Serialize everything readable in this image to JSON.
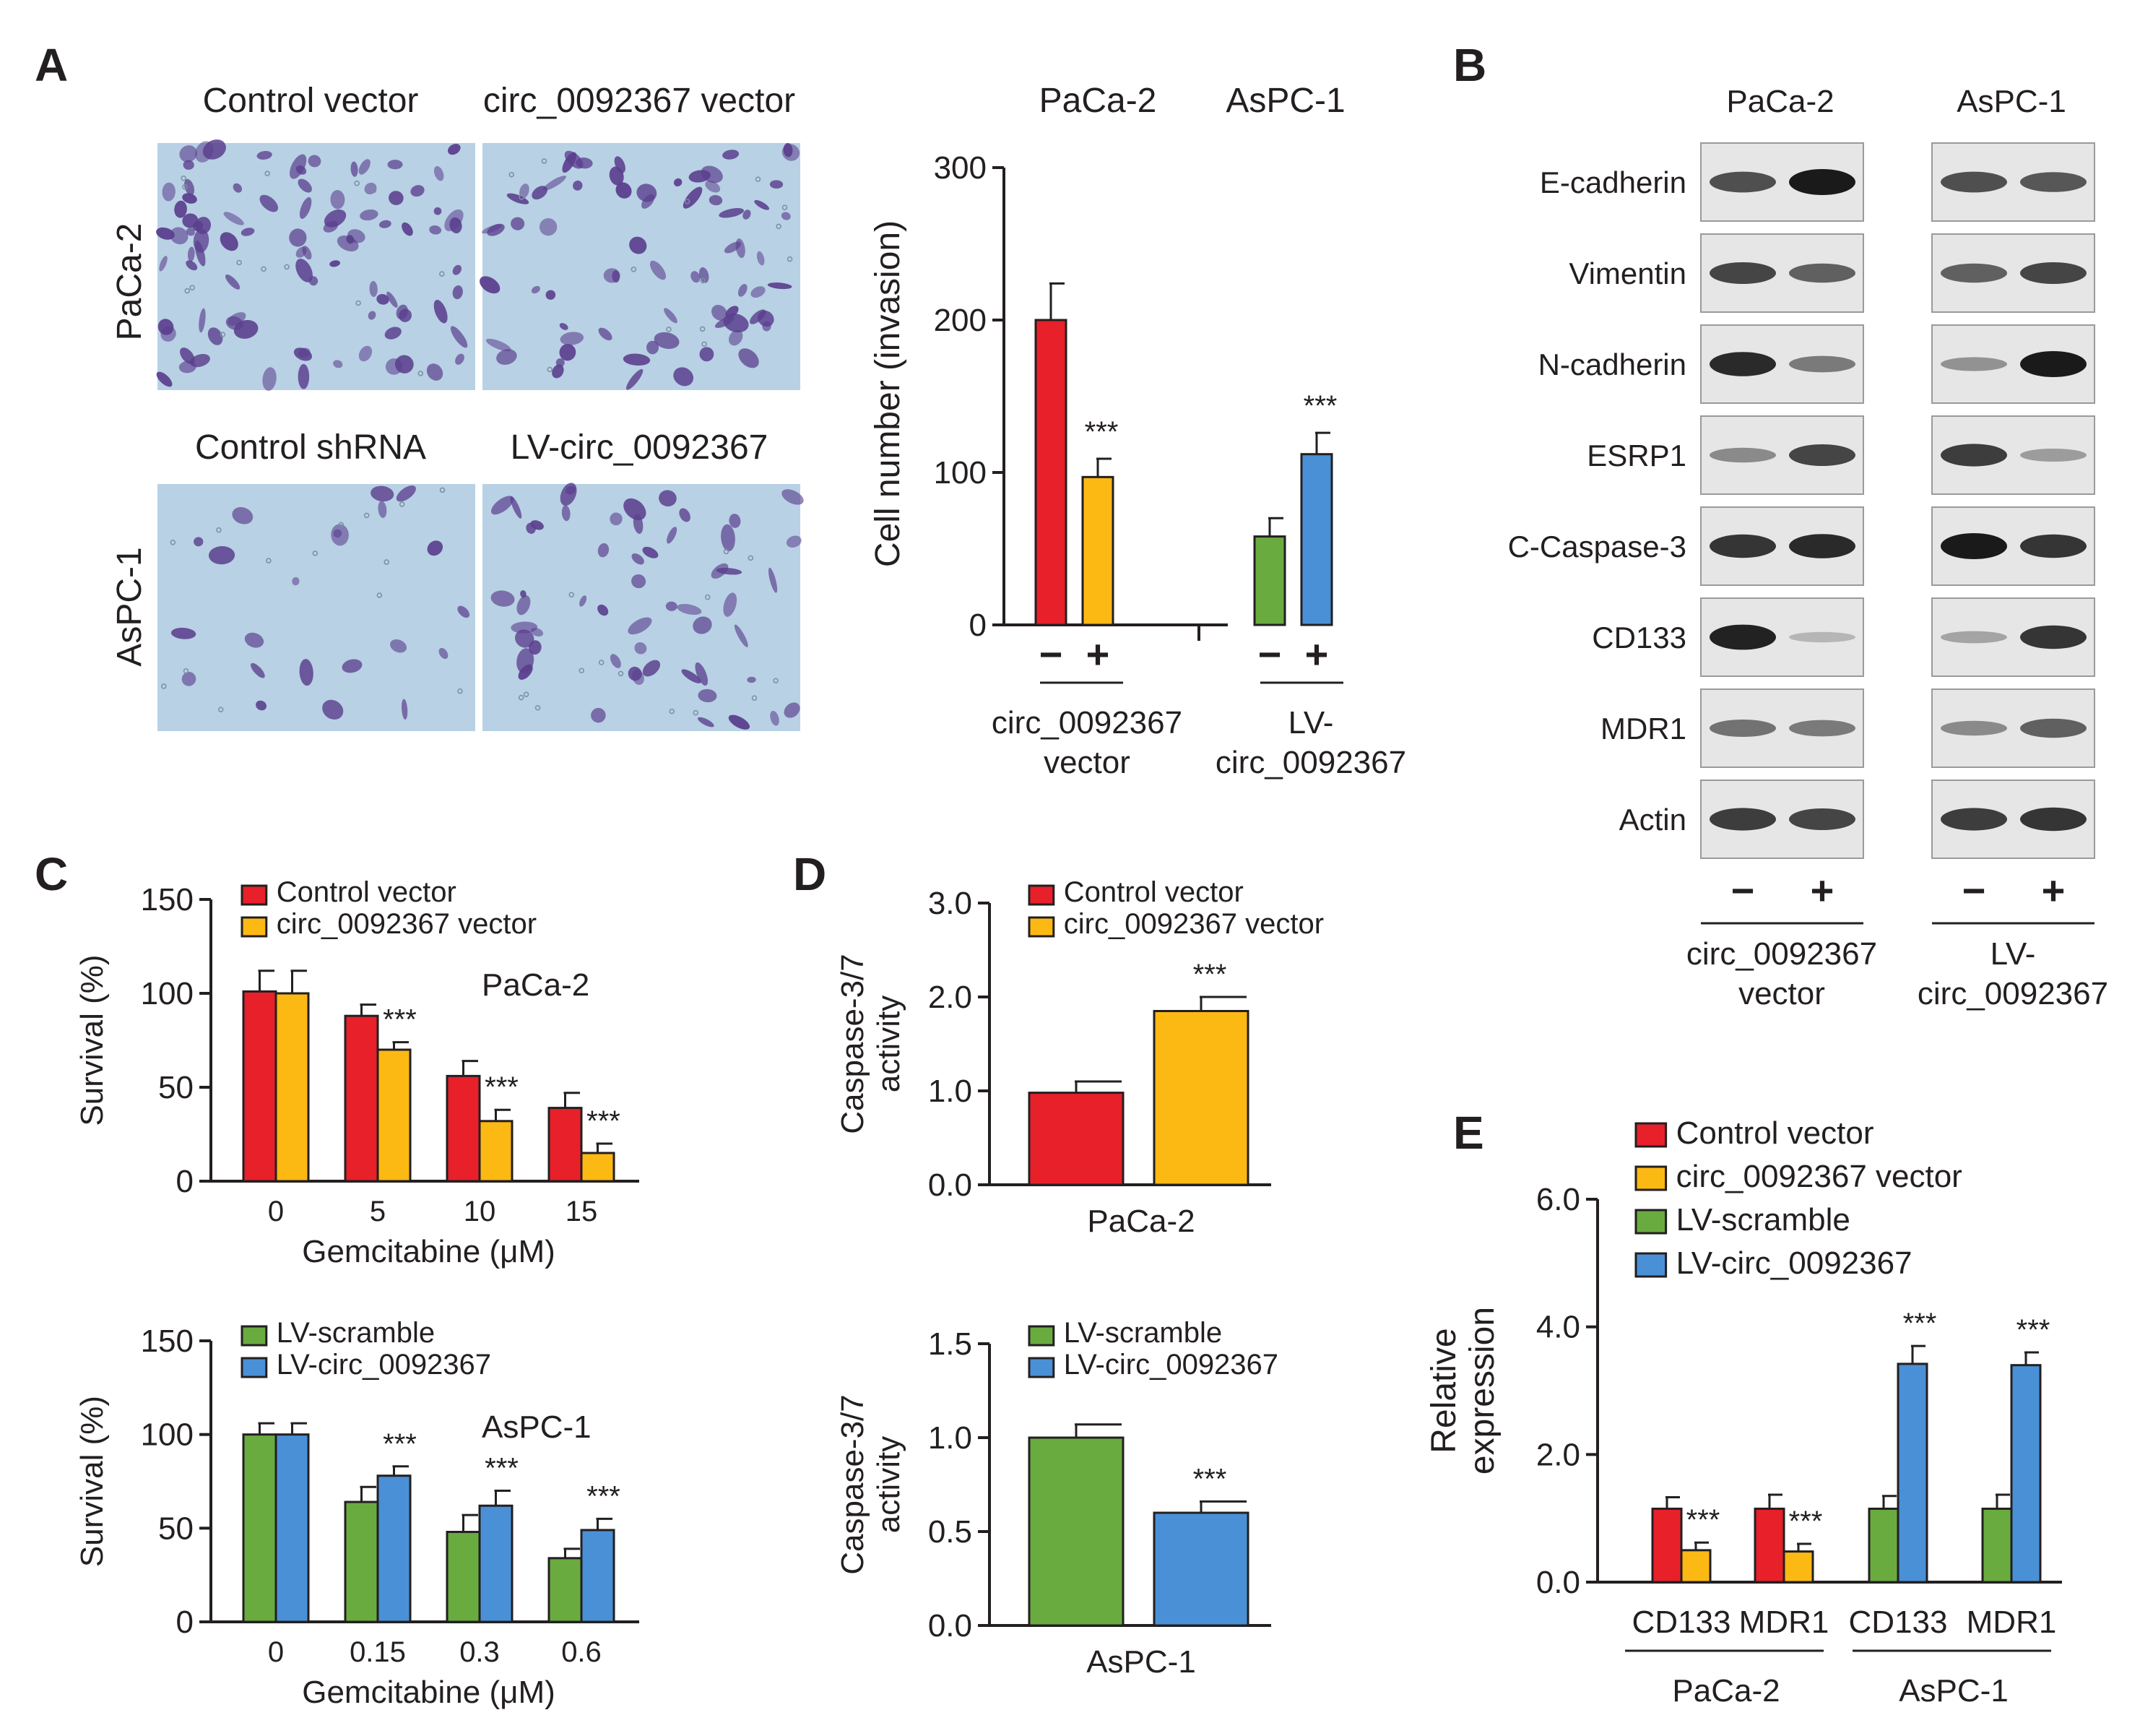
{
  "colors": {
    "red": "#e8202a",
    "yellow": "#fdb913",
    "green": "#6aab3f",
    "blue": "#4a90d6",
    "axis": "#231f20",
    "micro_bg": "#b8d1e4",
    "cell": "#5b3f8e",
    "blot_bg": "#e6e6e6",
    "band": "#1a1a1a"
  },
  "panelA": {
    "letter": "A",
    "micro": {
      "top_left_label": "Control vector",
      "top_right_label": "circ_0092367 vector",
      "row1_label": "PaCa-2",
      "bottom_left_label": "Control shRNA",
      "bottom_right_label": "LV-circ_0092367",
      "row2_label": "AsPC-1"
    },
    "group_titles": [
      "PaCa-2",
      "AsPC-1"
    ],
    "group_labels": [
      [
        "circ_0092367",
        "vector"
      ],
      [
        "LV-",
        "circ_0092367"
      ]
    ]
  },
  "panelB": {
    "letter": "B",
    "cell_lines": [
      "PaCa-2",
      "AsPC-1"
    ],
    "proteins": [
      "E-cadherin",
      "Vimentin",
      "N-cadherin",
      "ESRP1",
      "C-Caspase-3",
      "CD133",
      "MDR1",
      "Actin"
    ],
    "intensities": {
      "E-cadherin": [
        0.7,
        1.0,
        0.7,
        0.65
      ],
      "Vimentin": [
        0.75,
        0.6,
        0.6,
        0.75
      ],
      "N-cadherin": [
        0.9,
        0.45,
        0.3,
        1.0
      ],
      "ESRP1": [
        0.35,
        0.75,
        0.8,
        0.25
      ],
      "C-Caspase-3": [
        0.85,
        0.9,
        1.0,
        0.85
      ],
      "CD133": [
        0.95,
        0.1,
        0.2,
        0.85
      ],
      "MDR1": [
        0.5,
        0.45,
        0.35,
        0.6
      ],
      "Actin": [
        0.8,
        0.75,
        0.8,
        0.85
      ]
    },
    "signs": [
      "−",
      "+",
      "−",
      "+"
    ],
    "group_labels": [
      [
        "circ_0092367",
        "vector"
      ],
      [
        "LV-",
        "circ_0092367"
      ]
    ]
  },
  "panelC_letter": "C",
  "panelD_letter": "D",
  "panelE_letter": "E",
  "chart_data": [
    {
      "id": "A",
      "type": "bar",
      "ylabel": "Cell number (invasion)",
      "ylim": [
        0,
        300
      ],
      "yticks": [
        "0",
        "100",
        "200",
        "300"
      ],
      "categories": [
        "−",
        "+",
        "−",
        "+"
      ],
      "groups": [
        "PaCa-2",
        "AsPC-1"
      ],
      "values": [
        200,
        97,
        58,
        112
      ],
      "errors": [
        24,
        12,
        12,
        14
      ],
      "bar_colors": [
        "red",
        "yellow",
        "green",
        "blue"
      ],
      "annotations": [
        "",
        "***",
        "",
        "***"
      ]
    },
    {
      "id": "C1",
      "type": "bar",
      "title": "PaCa-2",
      "xlabel": "Gemcitabine (μM)",
      "ylabel": "Survival (%)",
      "ylim": [
        0,
        150
      ],
      "yticks": [
        "0",
        "50",
        "100",
        "150"
      ],
      "categories": [
        "0",
        "5",
        "10",
        "15"
      ],
      "series": [
        {
          "name": "Control vector",
          "color": "red",
          "values": [
            101,
            88,
            56,
            39
          ],
          "errors": [
            11,
            6,
            8,
            8
          ],
          "annotations": [
            "",
            "",
            "",
            ""
          ]
        },
        {
          "name": "circ_0092367 vector",
          "color": "yellow",
          "values": [
            100,
            70,
            32,
            15
          ],
          "errors": [
            12,
            4,
            6,
            5
          ],
          "annotations": [
            "",
            "***",
            "***",
            "***"
          ]
        }
      ]
    },
    {
      "id": "C2",
      "type": "bar",
      "title": "AsPC-1",
      "xlabel": "Gemcitabine (μM)",
      "ylabel": "Survival (%)",
      "ylim": [
        0,
        150
      ],
      "yticks": [
        "0",
        "50",
        "100",
        "150"
      ],
      "categories": [
        "0",
        "0.15",
        "0.3",
        "0.6"
      ],
      "series": [
        {
          "name": "LV-scramble",
          "color": "green",
          "values": [
            100,
            64,
            48,
            34
          ],
          "errors": [
            6,
            8,
            9,
            5
          ],
          "annotations": [
            "",
            "",
            "",
            ""
          ]
        },
        {
          "name": "LV-circ_0092367",
          "color": "blue",
          "values": [
            100,
            78,
            62,
            49
          ],
          "errors": [
            6,
            5,
            8,
            6
          ],
          "annotations": [
            "",
            "***",
            "***",
            "***"
          ]
        }
      ]
    },
    {
      "id": "D1",
      "type": "bar",
      "ylabel": "Caspase-3/7 activity",
      "xlabel": "PaCa-2",
      "ylim": [
        0,
        3
      ],
      "yticks": [
        "0.0",
        "1.0",
        "2.0",
        "3.0"
      ],
      "series": [
        {
          "name": "Control vector",
          "color": "red",
          "value": 0.98,
          "error": 0.12,
          "annotation": ""
        },
        {
          "name": "circ_0092367 vector",
          "color": "yellow",
          "value": 1.85,
          "error": 0.15,
          "annotation": "***"
        }
      ]
    },
    {
      "id": "D2",
      "type": "bar",
      "ylabel": "Caspase-3/7 activity",
      "xlabel": "AsPC-1",
      "ylim": [
        0,
        1.5
      ],
      "yticks": [
        "0.0",
        "0.5",
        "1.0",
        "1.5"
      ],
      "series": [
        {
          "name": "LV-scramble",
          "color": "green",
          "value": 1.0,
          "error": 0.07,
          "annotation": ""
        },
        {
          "name": "LV-circ_0092367",
          "color": "blue",
          "value": 0.6,
          "error": 0.06,
          "annotation": "***"
        }
      ]
    },
    {
      "id": "E",
      "type": "bar",
      "ylabel": "Relative expression",
      "ylim": [
        0,
        6
      ],
      "yticks": [
        "0.0",
        "2.0",
        "4.0",
        "6.0"
      ],
      "legend": [
        {
          "name": "Control vector",
          "color": "red"
        },
        {
          "name": "circ_0092367 vector",
          "color": "yellow"
        },
        {
          "name": "LV-scramble",
          "color": "green"
        },
        {
          "name": "LV-circ_0092367",
          "color": "blue"
        }
      ],
      "categories": [
        "CD133",
        "MDR1",
        "CD133",
        "MDR1"
      ],
      "groups": [
        "PaCa-2",
        "AsPC-1"
      ],
      "pairs": [
        {
          "colors": [
            "red",
            "yellow"
          ],
          "values": [
            1.15,
            0.5
          ],
          "errors": [
            0.18,
            0.12
          ],
          "annotations": [
            "",
            "***"
          ]
        },
        {
          "colors": [
            "red",
            "yellow"
          ],
          "values": [
            1.15,
            0.48
          ],
          "errors": [
            0.22,
            0.12
          ],
          "annotations": [
            "",
            "***"
          ]
        },
        {
          "colors": [
            "green",
            "blue"
          ],
          "values": [
            1.15,
            3.42
          ],
          "errors": [
            0.2,
            0.28
          ],
          "annotations": [
            "",
            "***"
          ]
        },
        {
          "colors": [
            "green",
            "blue"
          ],
          "values": [
            1.15,
            3.4
          ],
          "errors": [
            0.22,
            0.2
          ],
          "annotations": [
            "",
            "***"
          ]
        }
      ]
    }
  ]
}
